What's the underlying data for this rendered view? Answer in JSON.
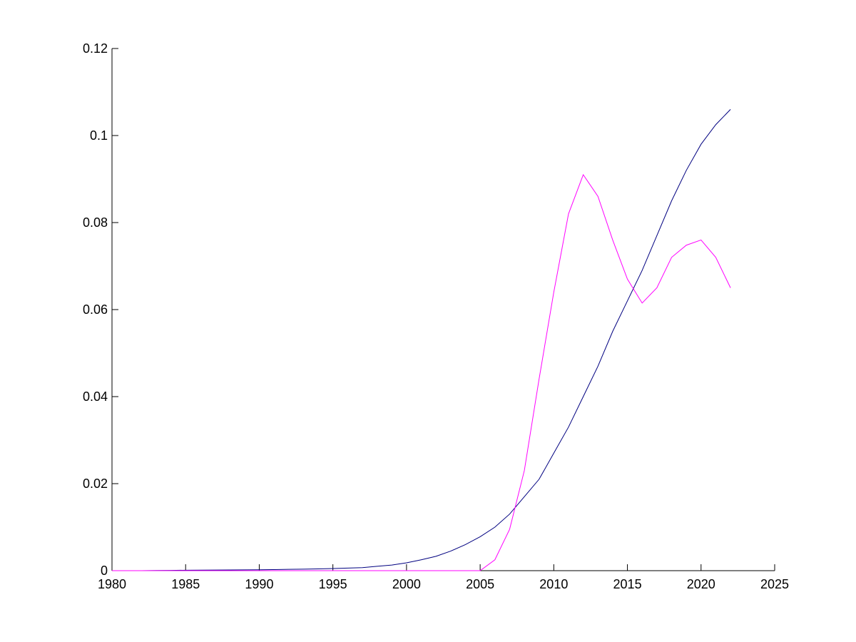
{
  "chart_data": {
    "type": "line",
    "x": [
      1980,
      1981,
      1982,
      1983,
      1984,
      1985,
      1986,
      1987,
      1988,
      1989,
      1990,
      1991,
      1992,
      1993,
      1994,
      1995,
      1996,
      1997,
      1998,
      1999,
      2000,
      2001,
      2002,
      2003,
      2004,
      2005,
      2006,
      2007,
      2008,
      2009,
      2010,
      2011,
      2012,
      2013,
      2014,
      2015,
      2016,
      2017,
      2018,
      2019,
      2020,
      2021,
      2022
    ],
    "series": [
      {
        "color": "#000080",
        "values": [
          0,
          0,
          0,
          5e-05,
          7e-05,
          0.0001,
          0.00012,
          0.00014,
          0.00016,
          0.00018,
          0.0002,
          0.00025,
          0.0003,
          0.00035,
          0.0004,
          0.0005,
          0.0006,
          0.0007,
          0.001,
          0.0013,
          0.0018,
          0.0025,
          0.0033,
          0.0045,
          0.006,
          0.0078,
          0.01,
          0.013,
          0.017,
          0.021,
          0.027,
          0.033,
          0.04,
          0.047,
          0.055,
          0.062,
          0.069,
          0.077,
          0.085,
          0.092,
          0.098,
          0.1025,
          0.106
        ]
      },
      {
        "color": "#ff00ff",
        "values": [
          0,
          0,
          0,
          0,
          0,
          0,
          0,
          0,
          0,
          0,
          0,
          0,
          0,
          0,
          0,
          0,
          0,
          0,
          0,
          0,
          0,
          0,
          0,
          0,
          0,
          0,
          0.0025,
          0.0095,
          0.023,
          0.044,
          0.064,
          0.082,
          0.091,
          0.086,
          0.076,
          0.067,
          0.0615,
          0.065,
          0.072,
          0.0748,
          0.076,
          0.072,
          0.065
        ]
      }
    ],
    "xlim": [
      1980,
      2025
    ],
    "xticks": [
      1980,
      1985,
      1990,
      1995,
      2000,
      2005,
      2010,
      2015,
      2020,
      2025
    ],
    "ylim": [
      0,
      0.12
    ],
    "yticks": [
      0,
      0.02,
      0.04,
      0.06,
      0.08,
      0.1,
      0.12
    ]
  }
}
